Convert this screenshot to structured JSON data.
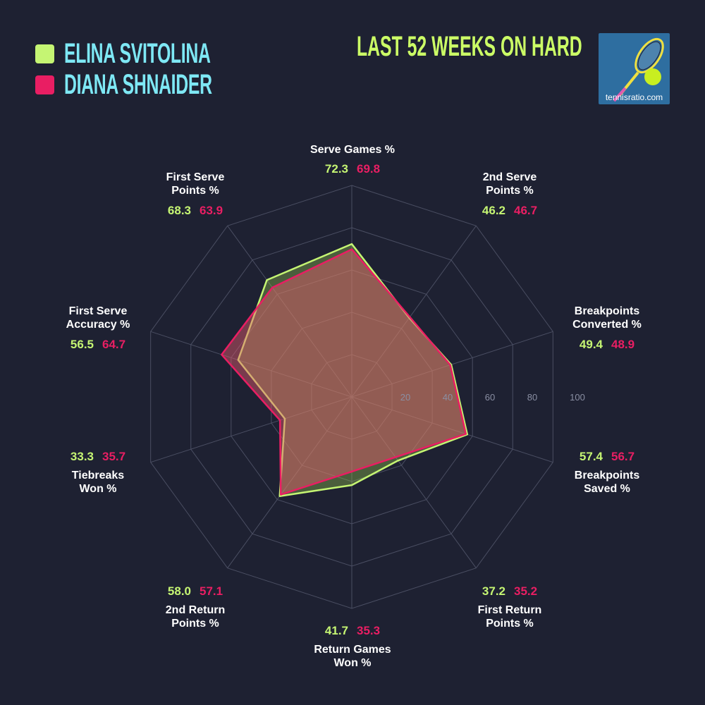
{
  "legend": [
    {
      "name": "ELINA SVITOLINA",
      "color": "#c5f573"
    },
    {
      "name": "DIANA SHNAIDER",
      "color": "#e91e63"
    }
  ],
  "title": "LAST 52 WEEKS ON HARD",
  "logo": {
    "text": "tennisratio.com",
    "icon": "tennis-racket-ball-icon"
  },
  "chart_data": {
    "type": "radar",
    "range": [
      0,
      100
    ],
    "ticks": [
      20,
      40,
      60,
      80,
      100
    ],
    "axes": [
      "Serve Games %",
      "2nd Serve Points %",
      "Breakpoints Converted %",
      "Breakpoints Saved %",
      "First Return Points %",
      "Return Games Won %",
      "2nd Return Points %",
      "Tiebreaks Won %",
      "First Serve Accuracy %",
      "First Serve Points %"
    ],
    "axis_lines": [
      [
        "Serve Games %"
      ],
      [
        "2nd Serve",
        "Points %"
      ],
      [
        "Breakpoints",
        "Converted %"
      ],
      [
        "Breakpoints",
        "Saved %"
      ],
      [
        "First Return",
        "Points %"
      ],
      [
        "Return Games",
        "Won %"
      ],
      [
        "2nd Return",
        "Points %"
      ],
      [
        "Tiebreaks",
        "Won %"
      ],
      [
        "First Serve",
        "Accuracy %"
      ],
      [
        "First Serve",
        "Points %"
      ]
    ],
    "series": [
      {
        "name": "ELINA SVITOLINA",
        "color": "#c5f573",
        "values": [
          "72.3",
          "46.2",
          "49.4",
          "57.4",
          "37.2",
          "41.7",
          "58.0",
          "33.3",
          "56.5",
          "68.3"
        ]
      },
      {
        "name": "DIANA SHNAIDER",
        "color": "#e91e63",
        "values": [
          "69.8",
          "46.7",
          "48.9",
          "56.7",
          "35.2",
          "35.3",
          "57.1",
          "35.7",
          "64.7",
          "63.9"
        ]
      }
    ]
  }
}
